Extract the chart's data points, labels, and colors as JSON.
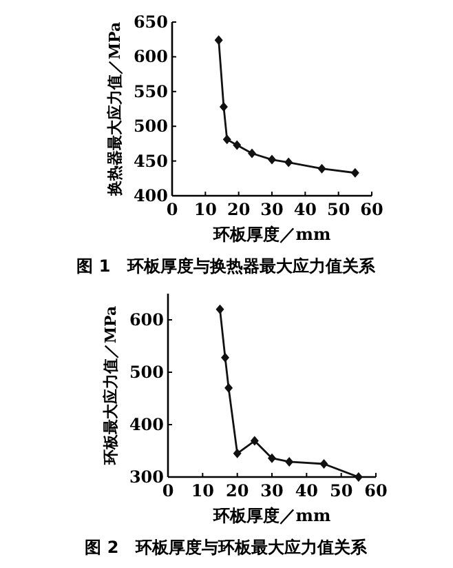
{
  "chart_data": [
    {
      "type": "line",
      "title": "图 1　环板厚度与换热器最大应力值关系",
      "xlabel": "环板厚度／mm",
      "ylabel": "换热器最大应力值／MPa",
      "x": [
        14,
        15.5,
        16.5,
        19.5,
        24,
        30,
        35,
        45,
        55
      ],
      "series": [
        {
          "color": "#111111",
          "values": [
            624,
            528,
            481,
            473,
            461,
            452,
            448,
            439,
            433
          ]
        }
      ],
      "xlim": [
        0,
        60
      ],
      "xticks": [
        0,
        10,
        20,
        30,
        40,
        50,
        60
      ],
      "ylim": [
        400,
        650
      ],
      "yticks": [
        400,
        450,
        500,
        550,
        600,
        650
      ],
      "marker": "diamond",
      "line_style": "solid"
    },
    {
      "type": "line",
      "title": "图 2　环板厚度与环板最大应力值关系",
      "xlabel": "环板厚度／mm",
      "ylabel": "环板最大应力值／MPa",
      "x": [
        15,
        16.5,
        17.5,
        20,
        25,
        30,
        35,
        45,
        55
      ],
      "series": [
        {
          "color": "#111111",
          "values": [
            620,
            528,
            470,
            345,
            369,
            336,
            329,
            325,
            300
          ]
        }
      ],
      "xlim": [
        0,
        60
      ],
      "xticks": [
        0,
        10,
        20,
        30,
        40,
        50,
        60
      ],
      "ylim": [
        300,
        650
      ],
      "yticks": [
        300,
        400,
        500,
        600
      ],
      "marker": "diamond",
      "line_style": "solid"
    }
  ]
}
